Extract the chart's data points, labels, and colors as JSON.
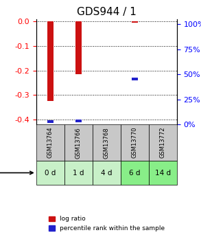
{
  "title": "GDS944 / 1",
  "samples": [
    "GSM13764",
    "GSM13766",
    "GSM13768",
    "GSM13770",
    "GSM13772"
  ],
  "time_labels": [
    "0 d",
    "1 d",
    "4 d",
    "6 d",
    "14 d"
  ],
  "log_ratio": [
    -0.325,
    -0.215,
    0.0,
    -0.005,
    0.0
  ],
  "percentile_rank": [
    3.0,
    3.5,
    0.0,
    45.0,
    0.0
  ],
  "ylim_left": [
    -0.42,
    0.01
  ],
  "ylim_right": [
    0,
    105
  ],
  "yticks_left": [
    -0.4,
    -0.3,
    -0.2,
    -0.1,
    0.0
  ],
  "yticks_right": [
    0,
    25,
    50,
    75,
    100
  ],
  "bar_width": 0.35,
  "bar_color_red": "#cc1111",
  "bar_color_blue": "#2222cc",
  "sample_bg": "#c8c8c8",
  "time_bg_light": "#c8f0c8",
  "time_bg_highlight": "#88ee88",
  "grid_color": "#000000",
  "title_fontsize": 11,
  "tick_fontsize": 8,
  "label_fontsize": 8,
  "time_highlight": [
    3,
    4
  ]
}
